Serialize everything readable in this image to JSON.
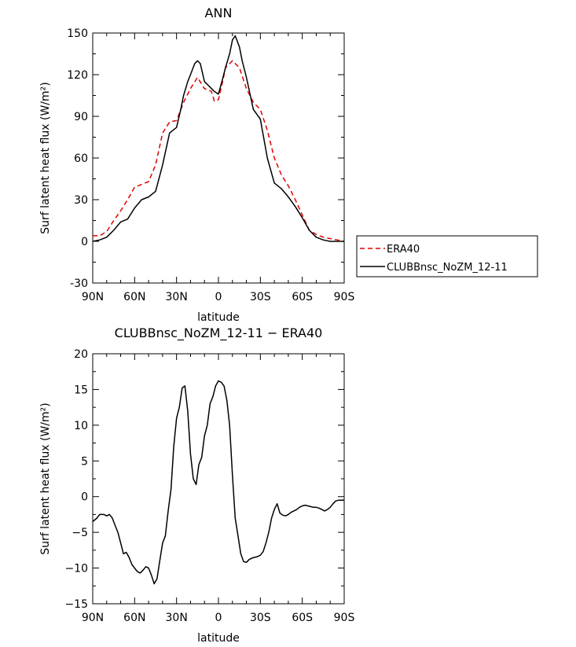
{
  "chart_data": [
    {
      "type": "line",
      "title": "ANN",
      "xlabel": "latitude",
      "ylabel": "Surf latent heat flux (W/m²)",
      "xlim": [
        90,
        -90
      ],
      "ylim": [
        -30,
        150
      ],
      "x_ticks": [
        90,
        60,
        30,
        0,
        -30,
        -60,
        -90
      ],
      "x_tick_labels": [
        "90N",
        "60N",
        "30N",
        "0",
        "30S",
        "60S",
        "90S"
      ],
      "y_ticks": [
        -30,
        0,
        30,
        60,
        90,
        120,
        150
      ],
      "y_tick_labels": [
        "-30",
        "0",
        "30",
        "60",
        "90",
        "120",
        "150"
      ],
      "legend": {
        "placement": "right",
        "entries": [
          "ERA40",
          "CLUBBnsc_NoZM_12-11"
        ]
      },
      "series": [
        {
          "name": "ERA40",
          "color": "#e00000",
          "dash": "dashed",
          "x": [
            90,
            85,
            80,
            75,
            70,
            65,
            60,
            55,
            50,
            45,
            40,
            35,
            30,
            25,
            20,
            15,
            10,
            5,
            3,
            0,
            -3,
            -5,
            -10,
            -15,
            -20,
            -25,
            -30,
            -35,
            -40,
            -45,
            -50,
            -55,
            -60,
            -65,
            -70,
            -75,
            -80,
            -85,
            -90
          ],
          "values": [
            4,
            4,
            7,
            15,
            22,
            30,
            39,
            41,
            43,
            55,
            78,
            86,
            87,
            100,
            110,
            118,
            110,
            108,
            101,
            102,
            115,
            125,
            130,
            125,
            110,
            100,
            95,
            80,
            60,
            48,
            40,
            30,
            19,
            8,
            5,
            3,
            2,
            1,
            0
          ]
        },
        {
          "name": "CLUBBnsc_NoZM_12-11",
          "color": "#000000",
          "dash": "solid",
          "x": [
            90,
            85,
            80,
            75,
            70,
            65,
            60,
            55,
            50,
            45,
            40,
            35,
            30,
            27,
            25,
            22,
            20,
            17,
            15,
            13,
            10,
            7,
            5,
            3,
            0,
            -3,
            -5,
            -8,
            -10,
            -12,
            -15,
            -17,
            -20,
            -25,
            -30,
            -35,
            -40,
            -45,
            -50,
            -55,
            -60,
            -65,
            -70,
            -75,
            -80,
            -85,
            -90
          ],
          "values": [
            0,
            1,
            3,
            8,
            14,
            16,
            24,
            30,
            32,
            36,
            55,
            78,
            82,
            95,
            105,
            115,
            120,
            128,
            130,
            128,
            115,
            112,
            110,
            108,
            106,
            117,
            125,
            135,
            145,
            148,
            140,
            130,
            118,
            95,
            88,
            60,
            42,
            38,
            32,
            25,
            17,
            8,
            3,
            1,
            0,
            0,
            0
          ]
        }
      ]
    },
    {
      "type": "line",
      "title": "CLUBBnsc_NoZM_12-11 − ERA40",
      "xlabel": "latitude",
      "ylabel": "Surf latent heat flux (W/m²)",
      "xlim": [
        90,
        -90
      ],
      "ylim": [
        -15,
        20
      ],
      "x_ticks": [
        90,
        60,
        30,
        0,
        -30,
        -60,
        -90
      ],
      "x_tick_labels": [
        "90N",
        "60N",
        "30N",
        "0",
        "30S",
        "60S",
        "90S"
      ],
      "y_ticks": [
        -15,
        -10,
        -5,
        0,
        5,
        10,
        15,
        20
      ],
      "y_tick_labels": [
        "−15",
        "−10",
        "−5",
        "0",
        "5",
        "10",
        "15",
        "20"
      ],
      "series": [
        {
          "color": "#000000",
          "dash": "solid",
          "x": [
            90,
            87,
            85,
            82,
            80,
            78,
            76,
            74,
            72,
            70,
            68,
            66,
            64,
            62,
            60,
            58,
            56,
            54,
            52,
            50,
            48,
            46,
            44,
            42,
            40,
            38,
            36,
            34,
            32,
            30,
            28,
            26,
            24,
            22,
            20,
            18,
            16,
            14,
            12,
            10,
            8,
            6,
            4,
            2,
            0,
            -2,
            -4,
            -6,
            -8,
            -10,
            -12,
            -14,
            -16,
            -18,
            -20,
            -22,
            -24,
            -26,
            -28,
            -30,
            -32,
            -34,
            -36,
            -38,
            -40,
            -42,
            -44,
            -46,
            -48,
            -50,
            -52,
            -54,
            -56,
            -58,
            -60,
            -62,
            -64,
            -66,
            -68,
            -70,
            -72,
            -74,
            -76,
            -78,
            -80,
            -82,
            -84,
            -86,
            -88,
            -90
          ],
          "values": [
            -3.5,
            -3,
            -2.5,
            -2.5,
            -2.7,
            -2.5,
            -3,
            -4,
            -5,
            -6.5,
            -8,
            -7.8,
            -8.5,
            -9.5,
            -10,
            -10.5,
            -10.7,
            -10.3,
            -9.8,
            -10,
            -11,
            -12.2,
            -11.5,
            -9,
            -6.5,
            -5.5,
            -2,
            1,
            7,
            11,
            12.5,
            15.2,
            15.5,
            12,
            6,
            2.5,
            1.7,
            4.5,
            5.5,
            8.5,
            10,
            13,
            14,
            15.5,
            16.2,
            16,
            15.5,
            13.5,
            10,
            3,
            -3,
            -5.5,
            -8,
            -9.1,
            -9.2,
            -8.8,
            -8.6,
            -8.5,
            -8.4,
            -8.2,
            -7.7,
            -6.5,
            -5,
            -3,
            -1.8,
            -1,
            -2.3,
            -2.6,
            -2.7,
            -2.5,
            -2.2,
            -2,
            -1.8,
            -1.5,
            -1.3,
            -1.2,
            -1.3,
            -1.4,
            -1.5,
            -1.5,
            -1.6,
            -1.8,
            -2,
            -1.8,
            -1.5,
            -1,
            -0.6,
            -0.5,
            -0.5,
            -0.5
          ]
        }
      ]
    }
  ]
}
